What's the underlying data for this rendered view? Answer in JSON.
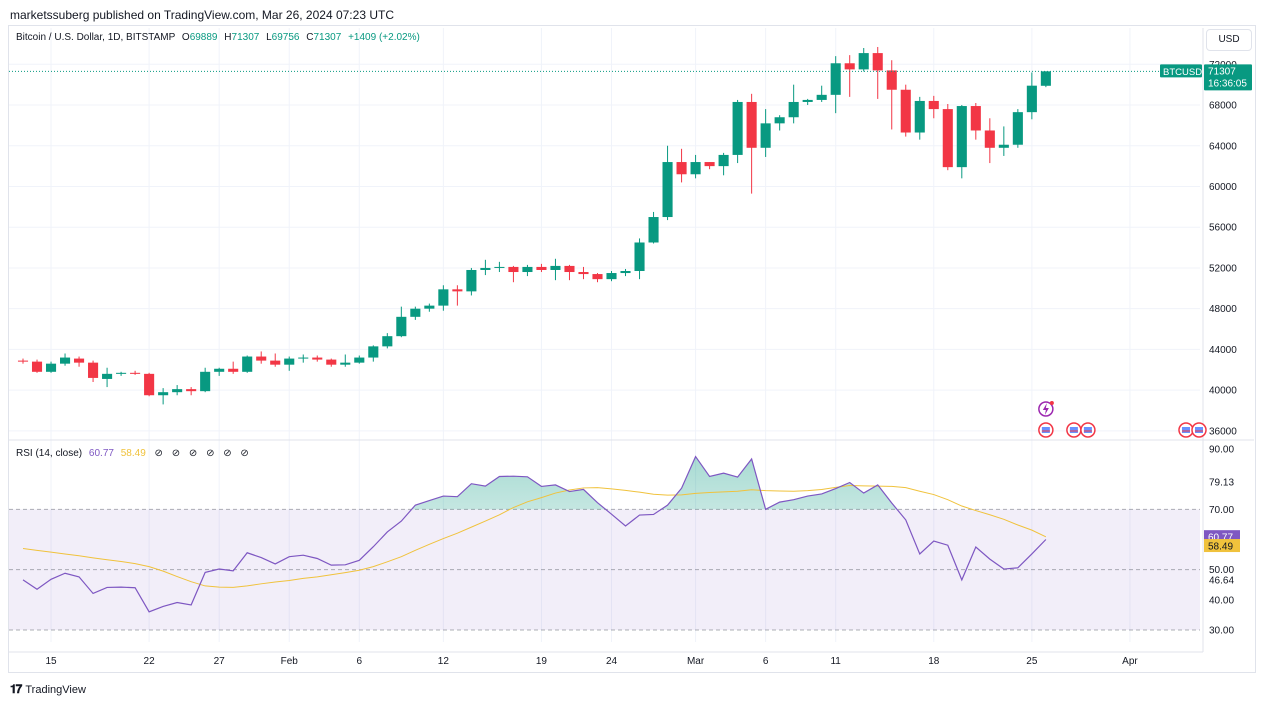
{
  "header": {
    "publisher": "marketssuberg published on TradingView.com, Mar 26, 2024 07:23 UTC"
  },
  "legend": {
    "symbol": "Bitcoin / U.S. Dollar, 1D, BITSTAMP",
    "o_key": "O",
    "o_val": "69889",
    "h_key": "H",
    "h_val": "71307",
    "l_key": "L",
    "l_val": "69756",
    "c_key": "C",
    "c_val": "71307",
    "change": "+1409 (+2.02%)"
  },
  "currency_button": "USD",
  "price_tag": {
    "ticker": "BTCUSD",
    "price": "71307",
    "countdown": "16:36:05"
  },
  "rsi_legend": {
    "title": "RSI (14, close)",
    "rsi": "60.77",
    "ma": "58.49"
  },
  "footer": {
    "brand": "TradingView"
  },
  "colors": {
    "up": "#089981",
    "down": "#f23645",
    "rsi": "#7e57c2",
    "rsi_ma": "#f0c23c",
    "band": "#7e57c2",
    "last_line": "#089981"
  },
  "chart_data": [
    {
      "type": "candlestick",
      "title": "Bitcoin / U.S. Dollar, 1D, BITSTAMP",
      "y_ticks": [
        36000,
        40000,
        44000,
        48000,
        52000,
        56000,
        60000,
        64000,
        68000,
        72000
      ],
      "ylim": [
        35300,
        73600
      ],
      "x_ticks": [
        "15",
        "22",
        "27",
        "Feb",
        "6",
        "12",
        "19",
        "24",
        "Mar",
        "6",
        "11",
        "18",
        "25",
        "Apr"
      ],
      "x_tick_dates": [
        "2024-01-15",
        "2024-01-22",
        "2024-01-27",
        "2024-02-01",
        "2024-02-06",
        "2024-02-12",
        "2024-02-19",
        "2024-02-24",
        "2024-03-01",
        "2024-03-06",
        "2024-03-11",
        "2024-03-18",
        "2024-03-25",
        "2024-04-01"
      ],
      "xlim": [
        "2024-01-12",
        "2024-04-06"
      ],
      "last_price": 71307,
      "candles": [
        {
          "date": "2024-01-13",
          "o": 42900,
          "h": 43100,
          "l": 42600,
          "c": 42800
        },
        {
          "date": "2024-01-14",
          "o": 42800,
          "h": 43000,
          "l": 41700,
          "c": 41800
        },
        {
          "date": "2024-01-15",
          "o": 41800,
          "h": 42800,
          "l": 41700,
          "c": 42600
        },
        {
          "date": "2024-01-16",
          "o": 42600,
          "h": 43600,
          "l": 42400,
          "c": 43200
        },
        {
          "date": "2024-01-17",
          "o": 43100,
          "h": 43300,
          "l": 42300,
          "c": 42700
        },
        {
          "date": "2024-01-18",
          "o": 42700,
          "h": 42900,
          "l": 40800,
          "c": 41200
        },
        {
          "date": "2024-01-19",
          "o": 41100,
          "h": 42200,
          "l": 40300,
          "c": 41600
        },
        {
          "date": "2024-01-20",
          "o": 41600,
          "h": 41800,
          "l": 41400,
          "c": 41700
        },
        {
          "date": "2024-01-21",
          "o": 41700,
          "h": 41900,
          "l": 41500,
          "c": 41600
        },
        {
          "date": "2024-01-22",
          "o": 41600,
          "h": 41700,
          "l": 39400,
          "c": 39500
        },
        {
          "date": "2024-01-23",
          "o": 39500,
          "h": 40200,
          "l": 38600,
          "c": 39800
        },
        {
          "date": "2024-01-24",
          "o": 39800,
          "h": 40500,
          "l": 39500,
          "c": 40100
        },
        {
          "date": "2024-01-25",
          "o": 40100,
          "h": 40300,
          "l": 39500,
          "c": 39900
        },
        {
          "date": "2024-01-26",
          "o": 39900,
          "h": 42200,
          "l": 39800,
          "c": 41800
        },
        {
          "date": "2024-01-27",
          "o": 41800,
          "h": 42200,
          "l": 41400,
          "c": 42100
        },
        {
          "date": "2024-01-28",
          "o": 42100,
          "h": 42800,
          "l": 41600,
          "c": 41800
        },
        {
          "date": "2024-01-29",
          "o": 41800,
          "h": 43400,
          "l": 41700,
          "c": 43300
        },
        {
          "date": "2024-01-30",
          "o": 43300,
          "h": 43800,
          "l": 42600,
          "c": 42900
        },
        {
          "date": "2024-01-31",
          "o": 42900,
          "h": 43600,
          "l": 42300,
          "c": 42500
        },
        {
          "date": "2024-02-01",
          "o": 42500,
          "h": 43300,
          "l": 41900,
          "c": 43100
        },
        {
          "date": "2024-02-02",
          "o": 43100,
          "h": 43500,
          "l": 42700,
          "c": 43200
        },
        {
          "date": "2024-02-03",
          "o": 43200,
          "h": 43400,
          "l": 42800,
          "c": 43000
        },
        {
          "date": "2024-02-04",
          "o": 43000,
          "h": 43100,
          "l": 42300,
          "c": 42500
        },
        {
          "date": "2024-02-05",
          "o": 42500,
          "h": 43500,
          "l": 42300,
          "c": 42700
        },
        {
          "date": "2024-02-06",
          "o": 42700,
          "h": 43400,
          "l": 42600,
          "c": 43200
        },
        {
          "date": "2024-02-07",
          "o": 43200,
          "h": 44400,
          "l": 42800,
          "c": 44300
        },
        {
          "date": "2024-02-08",
          "o": 44300,
          "h": 45600,
          "l": 44100,
          "c": 45300
        },
        {
          "date": "2024-02-09",
          "o": 45300,
          "h": 48200,
          "l": 45200,
          "c": 47200
        },
        {
          "date": "2024-02-10",
          "o": 47200,
          "h": 48200,
          "l": 46900,
          "c": 48000
        },
        {
          "date": "2024-02-11",
          "o": 48000,
          "h": 48500,
          "l": 47700,
          "c": 48300
        },
        {
          "date": "2024-02-12",
          "o": 48300,
          "h": 50300,
          "l": 47800,
          "c": 49900
        },
        {
          "date": "2024-02-13",
          "o": 49900,
          "h": 50300,
          "l": 48300,
          "c": 49700
        },
        {
          "date": "2024-02-14",
          "o": 49700,
          "h": 52000,
          "l": 49300,
          "c": 51800
        },
        {
          "date": "2024-02-15",
          "o": 51800,
          "h": 52800,
          "l": 51300,
          "c": 52000
        },
        {
          "date": "2024-02-16",
          "o": 52000,
          "h": 52600,
          "l": 51600,
          "c": 52100
        },
        {
          "date": "2024-02-17",
          "o": 52100,
          "h": 52200,
          "l": 50600,
          "c": 51600
        },
        {
          "date": "2024-02-18",
          "o": 51600,
          "h": 52300,
          "l": 51200,
          "c": 52100
        },
        {
          "date": "2024-02-19",
          "o": 52100,
          "h": 52400,
          "l": 51600,
          "c": 51800
        },
        {
          "date": "2024-02-20",
          "o": 51800,
          "h": 52900,
          "l": 50800,
          "c": 52200
        },
        {
          "date": "2024-02-21",
          "o": 52200,
          "h": 52300,
          "l": 50800,
          "c": 51600
        },
        {
          "date": "2024-02-22",
          "o": 51600,
          "h": 52100,
          "l": 50900,
          "c": 51400
        },
        {
          "date": "2024-02-23",
          "o": 51400,
          "h": 51500,
          "l": 50600,
          "c": 50900
        },
        {
          "date": "2024-02-24",
          "o": 50900,
          "h": 51700,
          "l": 50700,
          "c": 51500
        },
        {
          "date": "2024-02-25",
          "o": 51500,
          "h": 51900,
          "l": 51200,
          "c": 51700
        },
        {
          "date": "2024-02-26",
          "o": 51700,
          "h": 54900,
          "l": 50900,
          "c": 54500
        },
        {
          "date": "2024-02-27",
          "o": 54500,
          "h": 57500,
          "l": 54400,
          "c": 57000
        },
        {
          "date": "2024-02-28",
          "o": 57000,
          "h": 64000,
          "l": 56700,
          "c": 62400
        },
        {
          "date": "2024-02-29",
          "o": 62400,
          "h": 63700,
          "l": 60400,
          "c": 61200
        },
        {
          "date": "2024-03-01",
          "o": 61200,
          "h": 63100,
          "l": 60800,
          "c": 62400
        },
        {
          "date": "2024-03-02",
          "o": 62400,
          "h": 62400,
          "l": 61700,
          "c": 62000
        },
        {
          "date": "2024-03-03",
          "o": 62000,
          "h": 63300,
          "l": 61100,
          "c": 63100
        },
        {
          "date": "2024-03-04",
          "o": 63100,
          "h": 68500,
          "l": 62300,
          "c": 68300
        },
        {
          "date": "2024-03-05",
          "o": 68300,
          "h": 69100,
          "l": 59300,
          "c": 63800
        },
        {
          "date": "2024-03-06",
          "o": 63800,
          "h": 67600,
          "l": 62900,
          "c": 66200
        },
        {
          "date": "2024-03-07",
          "o": 66200,
          "h": 67000,
          "l": 65500,
          "c": 66800
        },
        {
          "date": "2024-03-08",
          "o": 66800,
          "h": 70000,
          "l": 66200,
          "c": 68300
        },
        {
          "date": "2024-03-09",
          "o": 68300,
          "h": 68600,
          "l": 68000,
          "c": 68500
        },
        {
          "date": "2024-03-10",
          "o": 68500,
          "h": 69900,
          "l": 68300,
          "c": 69000
        },
        {
          "date": "2024-03-11",
          "o": 69000,
          "h": 72800,
          "l": 67200,
          "c": 72100
        },
        {
          "date": "2024-03-12",
          "o": 72100,
          "h": 72900,
          "l": 68800,
          "c": 71500
        },
        {
          "date": "2024-03-13",
          "o": 71500,
          "h": 73600,
          "l": 71300,
          "c": 73100
        },
        {
          "date": "2024-03-14",
          "o": 73100,
          "h": 73700,
          "l": 68600,
          "c": 71400
        },
        {
          "date": "2024-03-15",
          "o": 71400,
          "h": 72400,
          "l": 65600,
          "c": 69500
        },
        {
          "date": "2024-03-16",
          "o": 69500,
          "h": 70000,
          "l": 64900,
          "c": 65300
        },
        {
          "date": "2024-03-17",
          "o": 65300,
          "h": 68800,
          "l": 64600,
          "c": 68400
        },
        {
          "date": "2024-03-18",
          "o": 68400,
          "h": 68900,
          "l": 66700,
          "c": 67600
        },
        {
          "date": "2024-03-19",
          "o": 67600,
          "h": 68100,
          "l": 61600,
          "c": 61900
        },
        {
          "date": "2024-03-20",
          "o": 61900,
          "h": 68000,
          "l": 60800,
          "c": 67900
        },
        {
          "date": "2024-03-21",
          "o": 67900,
          "h": 68200,
          "l": 64600,
          "c": 65500
        },
        {
          "date": "2024-03-22",
          "o": 65500,
          "h": 66700,
          "l": 62300,
          "c": 63800
        },
        {
          "date": "2024-03-23",
          "o": 63800,
          "h": 65900,
          "l": 63000,
          "c": 64100
        },
        {
          "date": "2024-03-24",
          "o": 64100,
          "h": 67600,
          "l": 63800,
          "c": 67300
        },
        {
          "date": "2024-03-25",
          "o": 67300,
          "h": 71200,
          "l": 66600,
          "c": 69900
        },
        {
          "date": "2024-03-26",
          "o": 69889,
          "h": 71307,
          "l": 69756,
          "c": 71307
        }
      ]
    },
    {
      "type": "line",
      "title": "RSI (14, close)",
      "y_ticks": [
        30.0,
        40.0,
        46.64,
        50.0,
        70.0,
        79.13,
        90.0
      ],
      "ylim": [
        26,
        93
      ],
      "band": [
        30,
        70
      ],
      "middle": 50,
      "last_rsi": 60.77,
      "last_ma": 58.49,
      "series": [
        {
          "name": "RSI",
          "values": [
            46.6,
            43.5,
            46.8,
            48.8,
            47.6,
            42.1,
            44.1,
            44.2,
            44.0,
            36.0,
            37.8,
            39.1,
            38.3,
            49.1,
            50.2,
            49.6,
            55.6,
            54.0,
            51.9,
            54.3,
            54.8,
            53.7,
            51.5,
            51.6,
            53.1,
            57.6,
            62.5,
            66.1,
            71.4,
            72.9,
            74.4,
            74.2,
            78.5,
            77.7,
            80.9,
            81.0,
            80.8,
            77.6,
            78.1,
            75.9,
            76.6,
            72.2,
            68.4,
            64.5,
            68.1,
            68.3,
            71.4,
            77.0,
            87.5,
            80.9,
            82.0,
            80.7,
            86.7,
            70.0,
            72.4,
            73.2,
            74.4,
            75.1,
            76.9,
            78.9,
            75.4,
            78.1,
            72.1,
            66.5,
            55.2,
            59.5,
            58.1,
            46.6,
            57.5,
            53.5,
            50.2,
            50.6,
            55.2,
            60.0,
            60.8
          ]
        },
        {
          "name": "RSI MA",
          "values": [
            57.0,
            56.4,
            55.8,
            55.2,
            54.6,
            53.9,
            53.3,
            52.7,
            52.0,
            51.0,
            49.5,
            47.7,
            46.0,
            44.6,
            44.2,
            44.1,
            44.6,
            45.3,
            45.9,
            46.4,
            47.1,
            47.6,
            48.3,
            49.0,
            49.8,
            51.0,
            52.6,
            54.3,
            56.4,
            58.4,
            60.3,
            62.1,
            64.1,
            66.1,
            68.2,
            70.6,
            72.5,
            73.9,
            75.4,
            76.4,
            77.1,
            77.2,
            76.8,
            76.3,
            75.7,
            75.0,
            74.7,
            74.8,
            75.3,
            75.6,
            75.8,
            76.0,
            76.5,
            76.2,
            76.1,
            76.0,
            76.2,
            76.6,
            77.3,
            77.9,
            77.8,
            77.7,
            77.6,
            77.2,
            76.0,
            74.9,
            73.2,
            71.1,
            69.6,
            68.2,
            66.7,
            64.8,
            63.1,
            60.9,
            58.5
          ]
        }
      ]
    }
  ]
}
